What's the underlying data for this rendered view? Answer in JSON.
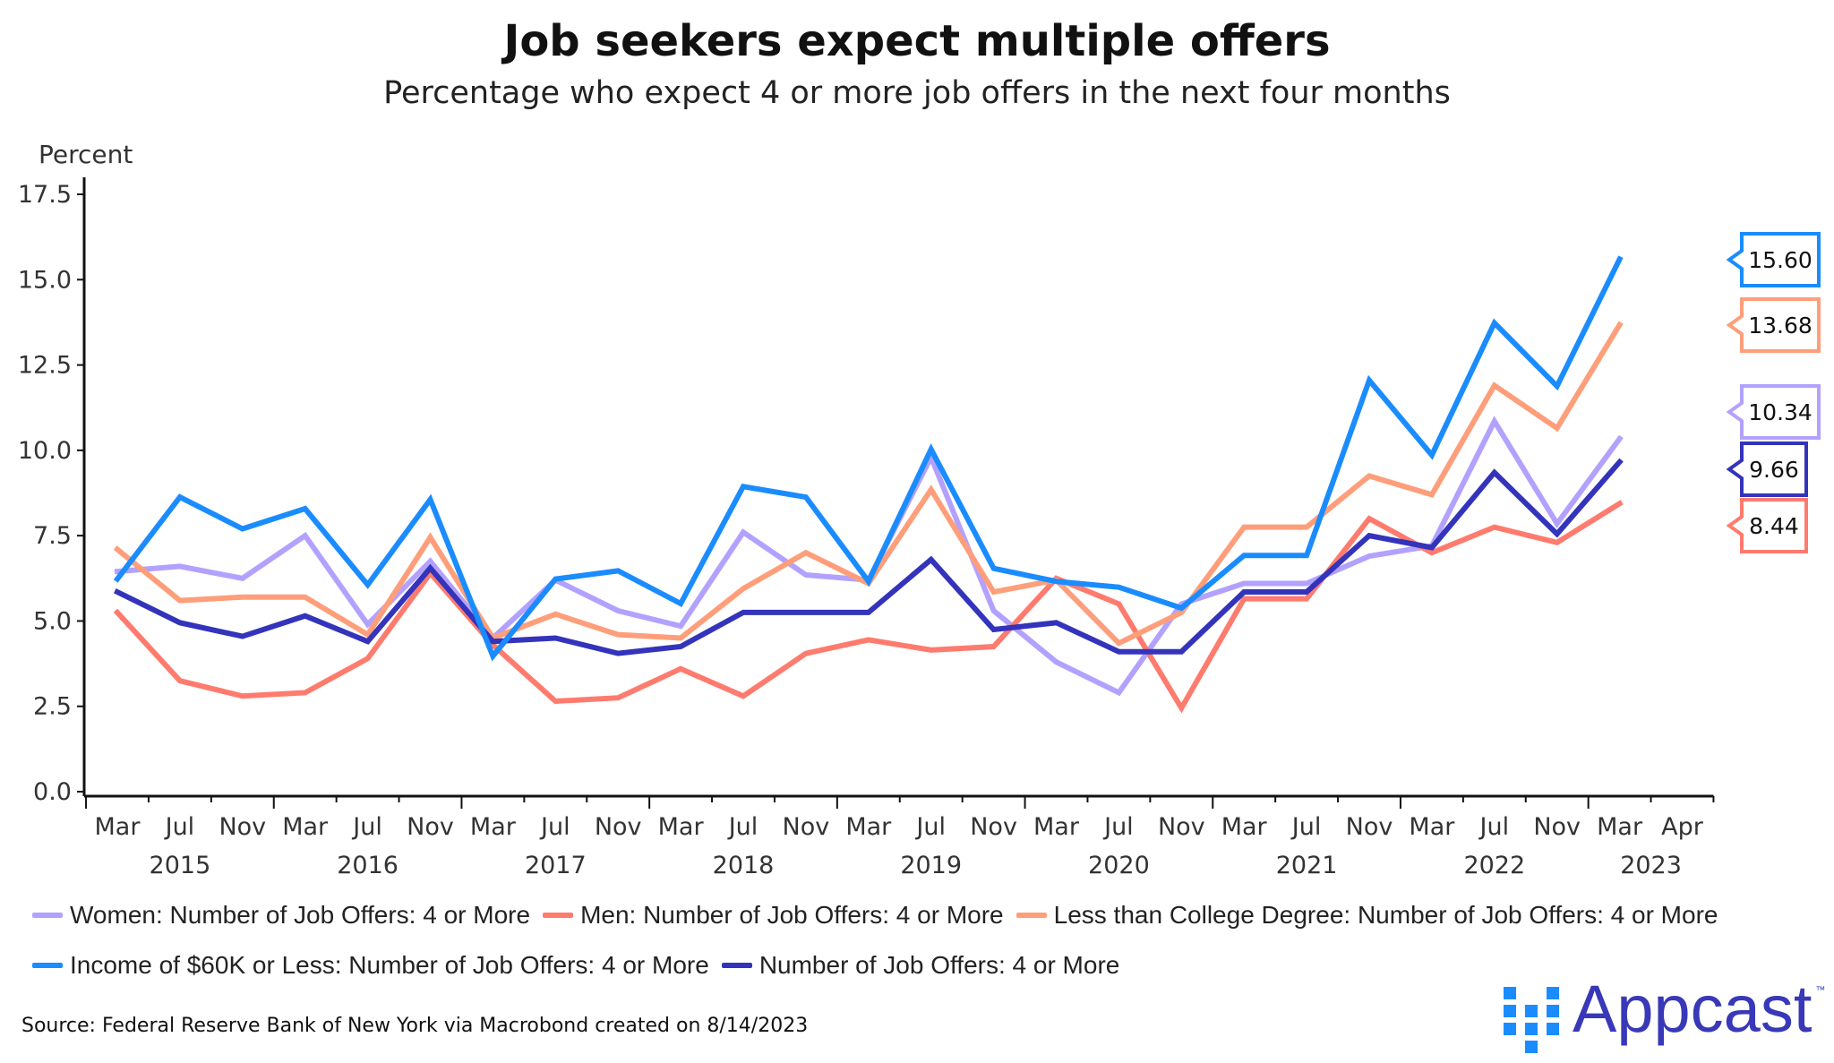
{
  "chart_data": {
    "type": "line",
    "title": "Job seekers expect multiple offers",
    "subtitle": "Percentage who expect 4 or more job offers in the next four months",
    "ylabel": "Percent",
    "ylim": [
      0,
      17.5
    ],
    "yticks": [
      "0.0",
      "2.5",
      "5.0",
      "7.5",
      "10.0",
      "12.5",
      "15.0",
      "17.5"
    ],
    "x": [
      "Mar 2015",
      "Jul 2015",
      "Nov 2015",
      "Mar 2016",
      "Jul 2016",
      "Nov 2016",
      "Mar 2017",
      "Jul 2017",
      "Nov 2017",
      "Mar 2018",
      "Jul 2018",
      "Nov 2018",
      "Mar 2019",
      "Jul 2019",
      "Nov 2019",
      "Mar 2020",
      "Jul 2020",
      "Nov 2020",
      "Mar 2021",
      "Jul 2021",
      "Nov 2021",
      "Mar 2022",
      "Jul 2022",
      "Nov 2022",
      "Mar 2023"
    ],
    "month_ticks": [
      "Mar",
      "Jul",
      "Nov",
      "Mar",
      "Jul",
      "Nov",
      "Mar",
      "Jul",
      "Nov",
      "Mar",
      "Jul",
      "Nov",
      "Mar",
      "Jul",
      "Nov",
      "Mar",
      "Jul",
      "Nov",
      "Mar",
      "Jul",
      "Nov",
      "Mar",
      "Jul",
      "Nov",
      "Mar",
      "Apr"
    ],
    "year_ticks": [
      "2015",
      "2016",
      "2017",
      "2018",
      "2019",
      "2020",
      "2021",
      "2022",
      "2023"
    ],
    "grid": false,
    "legend_placement": "bottom",
    "series": [
      {
        "name": "Women: Number of Job Offers: 4 or More",
        "color": "#b3a1ff",
        "values": [
          6.45,
          6.6,
          6.25,
          7.5,
          4.9,
          6.75,
          4.5,
          6.2,
          5.3,
          4.85,
          7.6,
          6.35,
          6.2,
          9.8,
          5.3,
          3.8,
          2.9,
          5.5,
          6.1,
          6.1,
          6.9,
          7.2,
          10.85,
          7.85,
          10.34
        ],
        "last_label": "10.34"
      },
      {
        "name": "Men: Number of Job Offers: 4 or More",
        "color": "#ff7b6e",
        "values": [
          5.25,
          3.25,
          2.8,
          2.9,
          3.9,
          6.4,
          4.3,
          2.65,
          2.75,
          3.6,
          2.8,
          4.05,
          4.45,
          4.15,
          4.25,
          6.25,
          5.5,
          2.45,
          5.65,
          5.65,
          8.0,
          7.0,
          7.75,
          7.3,
          8.44
        ],
        "last_label": "8.44"
      },
      {
        "name": "Less than College Degree: Number of Job Offers: 4 or More",
        "color": "#ff9e7a",
        "values": [
          7.1,
          5.6,
          5.7,
          5.7,
          4.6,
          7.45,
          4.5,
          5.2,
          4.6,
          4.5,
          5.95,
          7.0,
          6.1,
          8.85,
          5.85,
          6.2,
          4.35,
          5.25,
          7.75,
          7.75,
          9.25,
          8.7,
          11.9,
          10.65,
          13.68
        ],
        "last_label": "13.68"
      },
      {
        "name": "Income of $60K or Less: Number of Job Offers: 4 or More",
        "color": "#1a8cff",
        "values": [
          6.23,
          8.63,
          7.7,
          8.29,
          6.06,
          8.56,
          3.97,
          6.23,
          6.47,
          5.51,
          8.94,
          8.63,
          6.16,
          10.03,
          6.54,
          6.16,
          5.99,
          5.38,
          6.92,
          6.92,
          12.05,
          9.86,
          13.73,
          11.88,
          15.6
        ],
        "last_label": "15.60"
      },
      {
        "name": "Number of Job Offers: 4 or More",
        "color": "#3333bb",
        "values": [
          5.85,
          4.95,
          4.55,
          5.15,
          4.4,
          6.55,
          4.4,
          4.5,
          4.05,
          4.25,
          5.25,
          5.25,
          5.25,
          6.8,
          4.75,
          4.95,
          4.1,
          4.1,
          5.85,
          5.85,
          7.5,
          7.15,
          9.35,
          7.55,
          9.66
        ],
        "last_label": "9.66"
      }
    ]
  },
  "source": "Source: Federal Reserve Bank of New York via Macrobond created on 8/14/2023",
  "logo": {
    "text": "Appcast",
    "tm": "™",
    "color": "#3838b8",
    "mark_color": "#1a8cff"
  }
}
